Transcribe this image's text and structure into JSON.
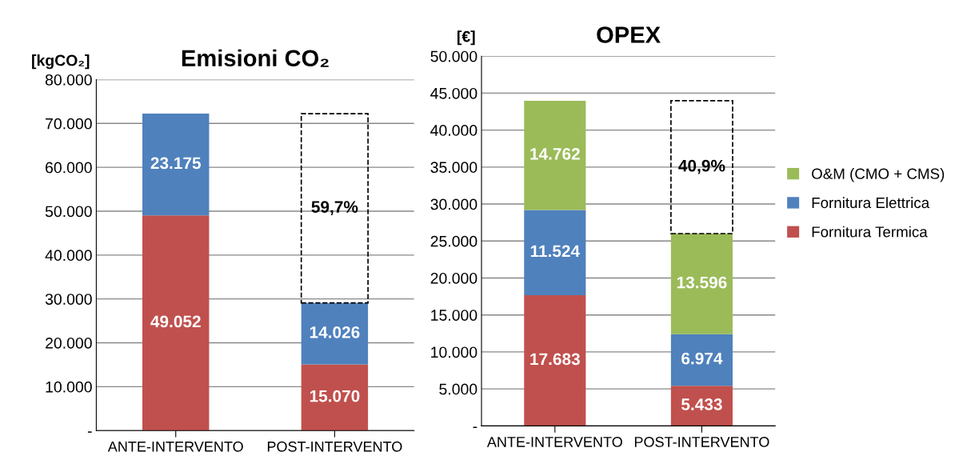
{
  "chart_data": [
    {
      "type": "bar",
      "stacked": true,
      "title": "Emisioni CO₂",
      "ylabel": "[kgCO₂]",
      "categories": [
        "ANTE-INTERVENTO",
        "POST-INTERVENTO"
      ],
      "series": [
        {
          "color": "#c0504d",
          "values": [
            49052,
            15070
          ],
          "value_labels": [
            "49.052",
            "15.070"
          ]
        },
        {
          "color": "#4f81bd",
          "values": [
            23175,
            14026
          ],
          "value_labels": [
            "23.175",
            "14.026"
          ]
        }
      ],
      "ylim": [
        0,
        80000
      ],
      "yticks": [
        {
          "value": 0,
          "label": "-"
        },
        {
          "value": 10000,
          "label": "10.000"
        },
        {
          "value": 20000,
          "label": "20.000"
        },
        {
          "value": 30000,
          "label": "30.000"
        },
        {
          "value": 40000,
          "label": "40.000"
        },
        {
          "value": 50000,
          "label": "50.000"
        },
        {
          "value": 60000,
          "label": "60.000"
        },
        {
          "value": 70000,
          "label": "70.000"
        },
        {
          "value": 80000,
          "label": "80.000"
        }
      ],
      "grid": "y",
      "legend": false,
      "annotations": [
        "59,7%"
      ]
    },
    {
      "type": "bar",
      "stacked": true,
      "title": "OPEX",
      "ylabel": "[€]",
      "categories": [
        "ANTE-INTERVENTO",
        "POST-INTERVENTO"
      ],
      "series": [
        {
          "name": "Fornitura Termica",
          "color": "#c0504d",
          "values": [
            17683,
            5433
          ],
          "value_labels": [
            "17.683",
            "5.433"
          ]
        },
        {
          "name": "Fornitura Elettrica",
          "color": "#4f81bd",
          "values": [
            11524,
            6974
          ],
          "value_labels": [
            "11.524",
            "6.974"
          ]
        },
        {
          "name": "O&M (CMO + CMS)",
          "color": "#9bbb59",
          "values": [
            14762,
            13596
          ],
          "value_labels": [
            "14.762",
            "13.596"
          ]
        }
      ],
      "ylim": [
        0,
        50000
      ],
      "yticks": [
        {
          "value": 0,
          "label": "-"
        },
        {
          "value": 5000,
          "label": "5.000"
        },
        {
          "value": 10000,
          "label": "10.000"
        },
        {
          "value": 15000,
          "label": "15.000"
        },
        {
          "value": 20000,
          "label": "20.000"
        },
        {
          "value": 25000,
          "label": "25.000"
        },
        {
          "value": 30000,
          "label": "30.000"
        },
        {
          "value": 35000,
          "label": "35.000"
        },
        {
          "value": 40000,
          "label": "40.000"
        },
        {
          "value": 45000,
          "label": "45.000"
        },
        {
          "value": 50000,
          "label": "50.000"
        }
      ],
      "grid": "y",
      "legend": "right",
      "annotations": [
        "40,9%"
      ]
    }
  ]
}
